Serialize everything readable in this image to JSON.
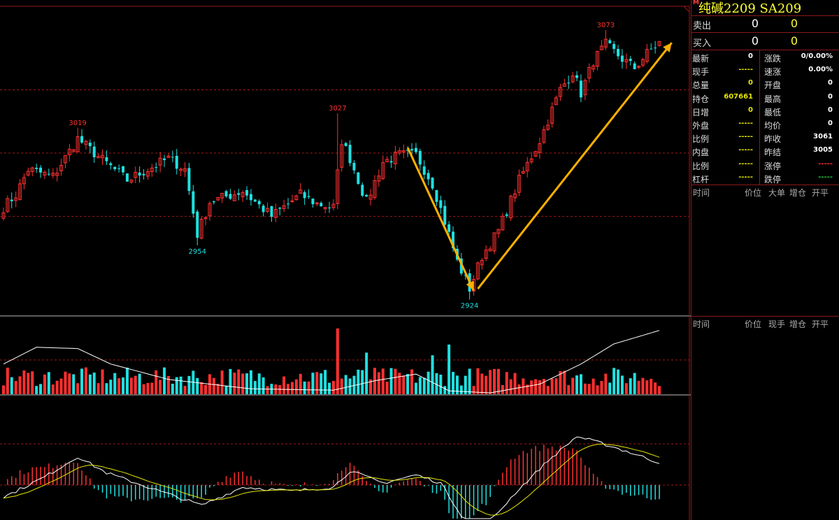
{
  "chart_data": {
    "type": "candlestick",
    "symbol": "纯碱2209 SA209",
    "price_ylim": [
      2915,
      3085
    ],
    "reference_price": 3005,
    "price_gridlines": [
      3040,
      3005,
      2970
    ],
    "annotations": [
      {
        "label": "3019",
        "index": 18,
        "price": 3019,
        "kind": "high"
      },
      {
        "label": "2954",
        "index": 47,
        "price": 2954,
        "kind": "low"
      },
      {
        "label": "3027",
        "index": 81,
        "price": 3027,
        "kind": "high"
      },
      {
        "label": "2924",
        "index": 113,
        "price": 2924,
        "kind": "low"
      },
      {
        "label": "3073",
        "index": 146,
        "price": 3073,
        "kind": "high"
      }
    ],
    "arrows": [
      {
        "from": {
          "index": 98,
          "price": 3008
        },
        "to": {
          "index": 114,
          "price": 2929
        },
        "color": "#ffb000"
      },
      {
        "from": {
          "index": 115,
          "price": 2930
        },
        "to": {
          "index": 162,
          "price": 3066
        },
        "color": "#ffb000"
      }
    ],
    "anchors": [
      {
        "i": 0,
        "p": 2975
      },
      {
        "i": 3,
        "p": 2982
      },
      {
        "i": 6,
        "p": 2996
      },
      {
        "i": 12,
        "p": 2992
      },
      {
        "i": 18,
        "p": 3013
      },
      {
        "i": 22,
        "p": 3005
      },
      {
        "i": 30,
        "p": 2990
      },
      {
        "i": 40,
        "p": 3002
      },
      {
        "i": 44,
        "p": 2996
      },
      {
        "i": 47,
        "p": 2960
      },
      {
        "i": 50,
        "p": 2978
      },
      {
        "i": 58,
        "p": 2984
      },
      {
        "i": 65,
        "p": 2970
      },
      {
        "i": 72,
        "p": 2982
      },
      {
        "i": 76,
        "p": 2977
      },
      {
        "i": 80,
        "p": 2975
      },
      {
        "i": 82,
        "p": 3012
      },
      {
        "i": 84,
        "p": 3002
      },
      {
        "i": 88,
        "p": 2978
      },
      {
        "i": 92,
        "p": 3000
      },
      {
        "i": 96,
        "p": 3004
      },
      {
        "i": 100,
        "p": 3004
      },
      {
        "i": 104,
        "p": 2988
      },
      {
        "i": 108,
        "p": 2960
      },
      {
        "i": 110,
        "p": 2945
      },
      {
        "i": 113,
        "p": 2930
      },
      {
        "i": 116,
        "p": 2948
      },
      {
        "i": 120,
        "p": 2962
      },
      {
        "i": 125,
        "p": 2990
      },
      {
        "i": 130,
        "p": 3012
      },
      {
        "i": 135,
        "p": 3040
      },
      {
        "i": 138,
        "p": 3050
      },
      {
        "i": 140,
        "p": 3038
      },
      {
        "i": 143,
        "p": 3056
      },
      {
        "i": 146,
        "p": 3065
      },
      {
        "i": 150,
        "p": 3057
      },
      {
        "i": 153,
        "p": 3052
      },
      {
        "i": 156,
        "p": 3060
      },
      {
        "i": 159,
        "p": 3066
      }
    ],
    "bar_count": 160,
    "volume_ma_anchors": [
      {
        "i": 0,
        "v": 0.45
      },
      {
        "i": 8,
        "v": 0.7
      },
      {
        "i": 18,
        "v": 0.68
      },
      {
        "i": 26,
        "v": 0.45
      },
      {
        "i": 40,
        "v": 0.22
      },
      {
        "i": 60,
        "v": 0.08
      },
      {
        "i": 80,
        "v": 0.06
      },
      {
        "i": 90,
        "v": 0.2
      },
      {
        "i": 100,
        "v": 0.3
      },
      {
        "i": 108,
        "v": 0.05
      },
      {
        "i": 118,
        "v": 0.02
      },
      {
        "i": 130,
        "v": 0.15
      },
      {
        "i": 140,
        "v": 0.45
      },
      {
        "i": 148,
        "v": 0.75
      },
      {
        "i": 159,
        "v": 0.95
      }
    ],
    "macd_anchors": [
      {
        "i": 0,
        "v": -0.3
      },
      {
        "i": 10,
        "v": 0.2
      },
      {
        "i": 18,
        "v": 0.7
      },
      {
        "i": 25,
        "v": 0.3
      },
      {
        "i": 35,
        "v": -0.05
      },
      {
        "i": 48,
        "v": -0.5
      },
      {
        "i": 58,
        "v": -0.05
      },
      {
        "i": 70,
        "v": -0.15
      },
      {
        "i": 80,
        "v": -0.05
      },
      {
        "i": 84,
        "v": 0.35
      },
      {
        "i": 92,
        "v": 0.05
      },
      {
        "i": 100,
        "v": 0.25
      },
      {
        "i": 106,
        "v": 0.05
      },
      {
        "i": 112,
        "v": -0.9
      },
      {
        "i": 118,
        "v": -0.9
      },
      {
        "i": 124,
        "v": -0.2
      },
      {
        "i": 132,
        "v": 0.6
      },
      {
        "i": 139,
        "v": 1.2
      },
      {
        "i": 146,
        "v": 1.0
      },
      {
        "i": 152,
        "v": 0.8
      },
      {
        "i": 159,
        "v": 0.55
      }
    ],
    "macd_ylim": [
      -1.0,
      1.3
    ],
    "colors": {
      "up": "#ff3030",
      "down": "#20e0e0",
      "grid": "#a01818",
      "dif": "#ffffff",
      "dea": "#e6e600",
      "arrow": "#ffb000"
    }
  },
  "panel": {
    "title_flag": "M",
    "title": "纯碱2209  SA209",
    "sell": {
      "label": "卖出",
      "price": "0",
      "qty": "0"
    },
    "buy": {
      "label": "买入",
      "price": "0",
      "qty": "0"
    },
    "quote_rows": [
      {
        "l": "最新",
        "lv": "0",
        "lc": "#fff",
        "r": "涨跌",
        "rv": "0/0.00%",
        "rc": "#fff"
      },
      {
        "l": "现手",
        "lv": "-----",
        "lc": "#e6e600",
        "r": "速涨",
        "rv": "0.00%",
        "rc": "#fff"
      },
      {
        "l": "总量",
        "lv": "0",
        "lc": "#e6e600",
        "r": "开盘",
        "rv": "0",
        "rc": "#fff"
      },
      {
        "l": "持仓",
        "lv": "607661",
        "lc": "#e6e600",
        "r": "最高",
        "rv": "0",
        "rc": "#fff"
      },
      {
        "l": "日增",
        "lv": "0",
        "lc": "#e6e600",
        "r": "最低",
        "rv": "0",
        "rc": "#fff"
      },
      {
        "l": "外盘",
        "lv": "-----",
        "lc": "#e6e600",
        "r": "均价",
        "rv": "0",
        "rc": "#fff"
      },
      {
        "l": "比例",
        "lv": "-----",
        "lc": "#e6e600",
        "r": "昨收",
        "rv": "3061",
        "rc": "#fff"
      },
      {
        "l": "内盘",
        "lv": "-----",
        "lc": "#e6e600",
        "r": "昨结",
        "rv": "3005",
        "rc": "#fff"
      },
      {
        "l": "比例",
        "lv": "-----",
        "lc": "#e6e600",
        "r": "涨停",
        "rv": "-----",
        "rc": "#ff3030"
      },
      {
        "l": "杠杆",
        "lv": "-----",
        "lc": "#e6e600",
        "r": "跌停",
        "rv": "-----",
        "rc": "#20c040"
      }
    ],
    "tick_header_1": {
      "time": "时间",
      "price": "价位",
      "big": "大单",
      "incr": "增仓",
      "kaiping": "开平"
    },
    "tick_header_2": {
      "time": "时间",
      "price": "价位",
      "hand": "现手",
      "incr": "增仓",
      "kaiping": "开平"
    }
  }
}
